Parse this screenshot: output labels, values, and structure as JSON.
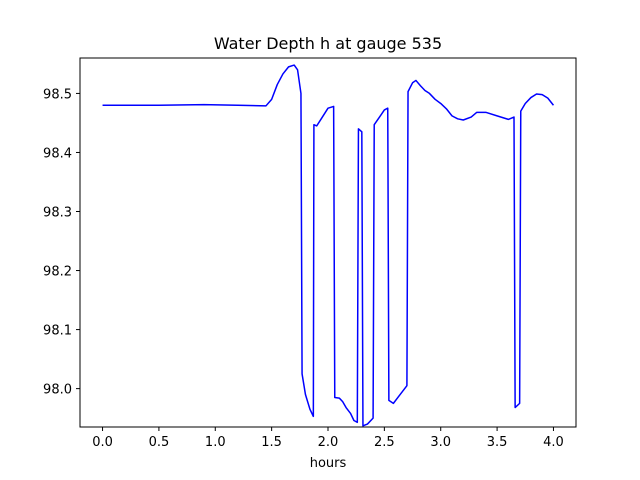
{
  "chart_data": {
    "type": "line",
    "title": "Water Depth h at gauge 535",
    "xlabel": "hours",
    "ylabel": "",
    "xlim": [
      -0.2,
      4.2
    ],
    "ylim": [
      97.935,
      98.56
    ],
    "xticks": [
      0.0,
      0.5,
      1.0,
      1.5,
      2.0,
      2.5,
      3.0,
      3.5,
      4.0
    ],
    "xtick_labels": [
      "0.0",
      "0.5",
      "1.0",
      "1.5",
      "2.0",
      "2.5",
      "3.0",
      "3.5",
      "4.0"
    ],
    "yticks": [
      98.0,
      98.1,
      98.2,
      98.3,
      98.4,
      98.5
    ],
    "ytick_labels": [
      "98.0",
      "98.1",
      "98.2",
      "98.3",
      "98.4",
      "98.5"
    ],
    "grid": false,
    "series": [
      {
        "color": "#0000ff",
        "x": [
          0.0,
          0.5,
          0.9,
          1.2,
          1.45,
          1.5,
          1.55,
          1.6,
          1.65,
          1.7,
          1.73,
          1.76,
          1.77,
          1.8,
          1.84,
          1.87,
          1.875,
          1.9,
          1.95,
          2.0,
          2.05,
          2.06,
          2.1,
          2.13,
          2.16,
          2.2,
          2.23,
          2.26,
          2.27,
          2.3,
          2.31,
          2.35,
          2.4,
          2.41,
          2.45,
          2.5,
          2.53,
          2.54,
          2.58,
          2.62,
          2.66,
          2.7,
          2.71,
          2.75,
          2.78,
          2.82,
          2.86,
          2.9,
          2.95,
          3.0,
          3.05,
          3.1,
          3.15,
          3.2,
          3.27,
          3.32,
          3.4,
          3.5,
          3.6,
          3.65,
          3.66,
          3.7,
          3.71,
          3.75,
          3.8,
          3.85,
          3.9,
          3.95,
          4.0
        ],
        "y": [
          98.48,
          98.48,
          98.481,
          98.48,
          98.479,
          98.49,
          98.515,
          98.533,
          98.545,
          98.548,
          98.54,
          98.5,
          98.025,
          97.99,
          97.965,
          97.953,
          98.447,
          98.445,
          98.46,
          98.475,
          98.478,
          97.985,
          97.984,
          97.978,
          97.968,
          97.958,
          97.946,
          97.943,
          98.44,
          98.435,
          97.937,
          97.94,
          97.95,
          98.447,
          98.458,
          98.472,
          98.475,
          97.98,
          97.975,
          97.985,
          97.995,
          98.005,
          98.503,
          98.518,
          98.522,
          98.513,
          98.505,
          98.5,
          98.49,
          98.483,
          98.474,
          98.462,
          98.457,
          98.455,
          98.46,
          98.468,
          98.468,
          98.462,
          98.456,
          98.46,
          97.968,
          97.975,
          98.47,
          98.483,
          98.493,
          98.499,
          98.498,
          98.492,
          98.48
        ]
      }
    ]
  }
}
